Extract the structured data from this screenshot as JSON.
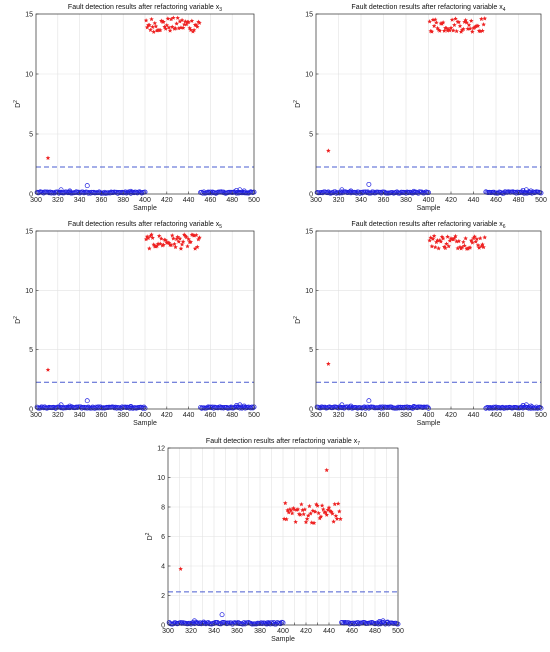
{
  "chart_data": [
    {
      "type": "scatter",
      "title": "Fault detection results after refactoring variable x",
      "title_sub": "3",
      "xlabel": "Sample",
      "ylabel": "D",
      "ylabel_sup": "2",
      "xlim": [
        300,
        500
      ],
      "ylim": [
        0,
        15
      ],
      "xticks": [
        300,
        320,
        340,
        360,
        380,
        400,
        420,
        440,
        460,
        480,
        500
      ],
      "yticks": [
        0,
        5,
        10,
        15
      ],
      "threshold": 2.25,
      "grid": true,
      "outliers": [
        {
          "x": 311,
          "y": 3.0,
          "marker": "star"
        },
        {
          "x": 347,
          "y": 0.7,
          "marker": "circle"
        }
      ],
      "fault_band": {
        "x": [
          402,
          450
        ],
        "y_mean": 14.1,
        "y_spread": 0.6
      },
      "normal_level": 0.12,
      "colors": {
        "normal": "#1f1fe0",
        "fault": "#ee2222",
        "threshold": "#4a5cd0"
      }
    },
    {
      "type": "scatter",
      "title": "Fault detection results after refactoring variable x",
      "title_sub": "4",
      "xlabel": "Sample",
      "ylabel": "D",
      "ylabel_sup": "2",
      "xlim": [
        300,
        500
      ],
      "ylim": [
        0,
        15
      ],
      "xticks": [
        300,
        320,
        340,
        360,
        380,
        400,
        420,
        440,
        460,
        480,
        500
      ],
      "yticks": [
        0,
        5,
        10,
        15
      ],
      "threshold": 2.25,
      "grid": true,
      "outliers": [
        {
          "x": 311,
          "y": 3.6,
          "marker": "star"
        },
        {
          "x": 347,
          "y": 0.8,
          "marker": "circle"
        }
      ],
      "fault_band": {
        "x": [
          402,
          450
        ],
        "y_mean": 14.1,
        "y_spread": 0.6
      },
      "normal_level": 0.12,
      "colors": {
        "normal": "#1f1fe0",
        "fault": "#ee2222",
        "threshold": "#4a5cd0"
      }
    },
    {
      "type": "scatter",
      "title": "Fault detection results after refactoring variable x",
      "title_sub": "5",
      "xlabel": "Sample",
      "ylabel": "D",
      "ylabel_sup": "2",
      "xlim": [
        300,
        500
      ],
      "ylim": [
        0,
        15
      ],
      "xticks": [
        300,
        320,
        340,
        360,
        380,
        400,
        420,
        440,
        460,
        480,
        500
      ],
      "yticks": [
        0,
        5,
        10,
        15
      ],
      "threshold": 2.25,
      "grid": true,
      "outliers": [
        {
          "x": 311,
          "y": 3.3,
          "marker": "star"
        },
        {
          "x": 347,
          "y": 0.7,
          "marker": "circle"
        }
      ],
      "fault_band": {
        "x": [
          402,
          450
        ],
        "y_mean": 14.1,
        "y_spread": 0.6
      },
      "normal_level": 0.12,
      "colors": {
        "normal": "#1f1fe0",
        "fault": "#ee2222",
        "threshold": "#4a5cd0"
      }
    },
    {
      "type": "scatter",
      "title": "Fault detection results after refactoring variable x",
      "title_sub": "6",
      "xlabel": "Sample",
      "ylabel": "D",
      "ylabel_sup": "2",
      "xlim": [
        300,
        500
      ],
      "ylim": [
        0,
        15
      ],
      "xticks": [
        300,
        320,
        340,
        360,
        380,
        400,
        420,
        440,
        460,
        480,
        500
      ],
      "yticks": [
        0,
        5,
        10,
        15
      ],
      "threshold": 2.25,
      "grid": true,
      "outliers": [
        {
          "x": 311,
          "y": 3.8,
          "marker": "star"
        },
        {
          "x": 347,
          "y": 0.7,
          "marker": "circle"
        }
      ],
      "fault_band": {
        "x": [
          402,
          450
        ],
        "y_mean": 14.1,
        "y_spread": 0.6
      },
      "normal_level": 0.12,
      "colors": {
        "normal": "#1f1fe0",
        "fault": "#ee2222",
        "threshold": "#4a5cd0"
      }
    },
    {
      "type": "scatter",
      "title": "Fault detection results after refactoring variable x",
      "title_sub": "7",
      "xlabel": "Sample",
      "ylabel": "D",
      "ylabel_sup": "2",
      "xlim": [
        300,
        500
      ],
      "ylim": [
        0,
        12
      ],
      "xticks": [
        300,
        310,
        320,
        330,
        340,
        350,
        360,
        370,
        380,
        390,
        400,
        410,
        420,
        430,
        440,
        450,
        460,
        470,
        480,
        490,
        500
      ],
      "xticklabels": [
        300,
        320,
        340,
        360,
        380,
        400,
        420,
        440,
        460,
        480,
        500
      ],
      "yticks": [
        0,
        2,
        4,
        6,
        8,
        10,
        12
      ],
      "threshold": 2.25,
      "grid": true,
      "outliers": [
        {
          "x": 311,
          "y": 3.8,
          "marker": "star"
        },
        {
          "x": 347,
          "y": 0.7,
          "marker": "circle"
        },
        {
          "x": 438,
          "y": 10.5,
          "marker": "star"
        }
      ],
      "fault_band": {
        "x": [
          402,
          450
        ],
        "y_mean": 7.6,
        "y_spread": 0.7
      },
      "normal_level": 0.12,
      "colors": {
        "normal": "#1f1fe0",
        "fault": "#ee2222",
        "threshold": "#4a5cd0"
      }
    }
  ]
}
